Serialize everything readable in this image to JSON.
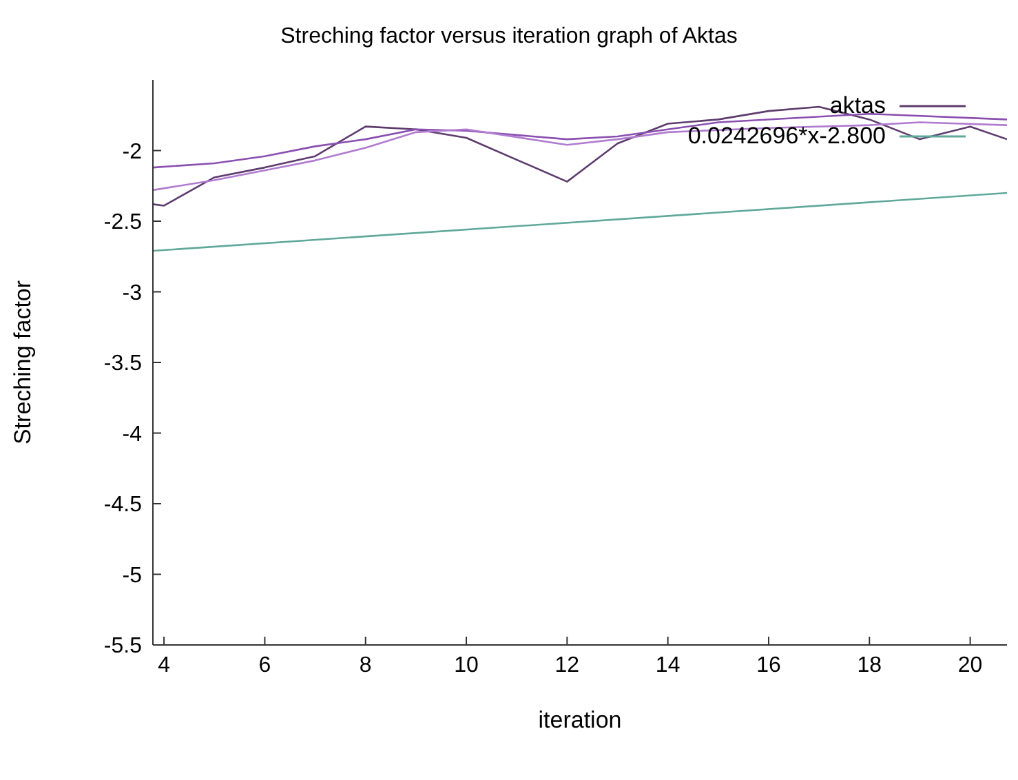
{
  "chart_data": {
    "type": "line",
    "title": "Streching factor versus iteration graph of Aktas",
    "xlabel": "iteration",
    "ylabel": "Streching factor",
    "xlim": [
      3.78,
      20.73
    ],
    "ylim": [
      -5.5,
      -1.5
    ],
    "xticks": [
      4,
      6,
      8,
      10,
      12,
      14,
      16,
      18,
      20
    ],
    "yticks": [
      -5.5,
      -5,
      -4.5,
      -4,
      -3.5,
      -3,
      -2.5,
      -2
    ],
    "legend": "top right",
    "marker": "none",
    "line_style": "solid",
    "series": [
      {
        "name": "aktas",
        "color": "#5e3c6e",
        "x": [
          3.78,
          4,
          5,
          6,
          7,
          8,
          9,
          10,
          12,
          13,
          14,
          15,
          16,
          17,
          18,
          19,
          20,
          20.73
        ],
        "values": [
          -2.38,
          -2.39,
          -2.19,
          -2.12,
          -2.04,
          -1.83,
          -1.85,
          -1.91,
          -2.22,
          -1.95,
          -1.81,
          -1.78,
          -1.72,
          -1.69,
          -1.78,
          -1.92,
          -1.83,
          -1.92
        ]
      },
      {
        "color": "#8a4fb0",
        "x": [
          3.78,
          5,
          6,
          7,
          8,
          9,
          10,
          12,
          13,
          14,
          15,
          18,
          20.73
        ],
        "values": [
          -2.12,
          -2.09,
          -2.04,
          -1.97,
          -1.92,
          -1.85,
          -1.86,
          -1.92,
          -1.9,
          -1.85,
          -1.8,
          -1.74,
          -1.78
        ]
      },
      {
        "color": "#b07cd0",
        "x": [
          3.78,
          5,
          6,
          7,
          8,
          9,
          10,
          12,
          13,
          14,
          16,
          18,
          19,
          20.73
        ],
        "values": [
          -2.28,
          -2.21,
          -2.14,
          -2.07,
          -1.98,
          -1.87,
          -1.85,
          -1.96,
          -1.92,
          -1.87,
          -1.84,
          -1.82,
          -1.8,
          -1.82
        ]
      },
      {
        "name": "0.0242696*x-2.800",
        "type": "line",
        "color": "#5fa89a",
        "x": [
          3.78,
          20.73
        ],
        "values": [
          -2.71,
          -2.3
        ]
      }
    ]
  }
}
